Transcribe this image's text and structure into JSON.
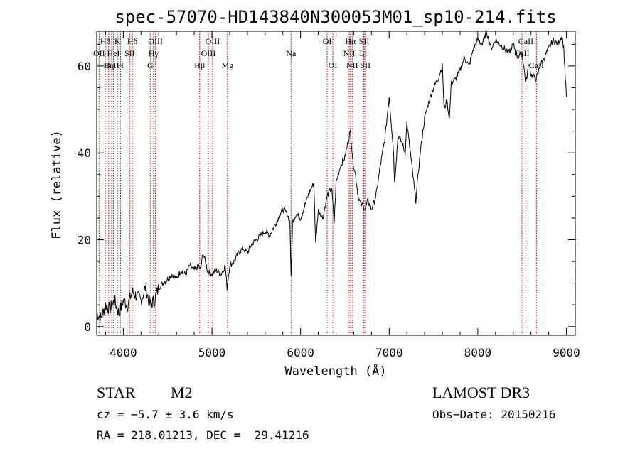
{
  "chart_data": {
    "type": "line",
    "title": "spec-57070-HD143840N300053M01_sp10-214.fits",
    "xlabel": "Wavelength (Å)",
    "ylabel": "Flux (relative)",
    "xlim": [
      3700,
      9100
    ],
    "ylim": [
      -2,
      68
    ],
    "xticks": [
      4000,
      5000,
      6000,
      7000,
      8000,
      9000
    ],
    "yticks": [
      0,
      20,
      40,
      60
    ],
    "grid": false,
    "series": [
      {
        "name": "flux",
        "x": [
          3700,
          3750,
          3800,
          3850,
          3900,
          3950,
          4000,
          4050,
          4100,
          4150,
          4200,
          4250,
          4300,
          4350,
          4400,
          4450,
          4500,
          4550,
          4600,
          4650,
          4700,
          4750,
          4800,
          4850,
          4870,
          4900,
          4950,
          5000,
          5050,
          5100,
          5150,
          5170,
          5200,
          5250,
          5300,
          5350,
          5400,
          5450,
          5500,
          5550,
          5600,
          5650,
          5700,
          5750,
          5800,
          5850,
          5880,
          5893,
          5910,
          5950,
          6000,
          6050,
          6100,
          6150,
          6170,
          6200,
          6250,
          6300,
          6350,
          6380,
          6400,
          6450,
          6500,
          6530,
          6563,
          6590,
          6620,
          6650,
          6680,
          6700,
          6730,
          6760,
          6800,
          6850,
          6900,
          6950,
          7000,
          7050,
          7060,
          7100,
          7150,
          7180,
          7200,
          7250,
          7300,
          7350,
          7400,
          7450,
          7500,
          7550,
          7600,
          7620,
          7650,
          7680,
          7700,
          7750,
          7800,
          7850,
          7900,
          7950,
          8000,
          8050,
          8100,
          8150,
          8200,
          8250,
          8300,
          8350,
          8400,
          8450,
          8500,
          8542,
          8580,
          8600,
          8662,
          8700,
          8750,
          8800,
          8850,
          8900,
          8950,
          8970,
          9000
        ],
        "y": [
          3,
          2,
          5,
          4,
          6,
          3,
          6,
          5,
          8,
          7,
          6,
          9,
          5,
          6,
          9,
          10,
          11,
          12,
          11,
          13,
          12,
          14,
          13,
          14,
          13,
          17,
          13,
          12,
          13,
          12,
          14,
          9,
          14,
          15,
          17,
          18,
          17,
          19,
          20,
          21,
          22,
          21,
          23,
          25,
          27,
          26,
          24,
          11,
          24,
          26,
          25,
          28,
          31,
          33,
          19,
          27,
          25,
          30,
          32,
          24,
          33,
          37,
          39,
          42,
          45,
          38,
          35,
          30,
          28,
          28,
          27,
          29,
          27,
          30,
          37,
          43,
          53,
          40,
          33,
          44,
          42,
          40,
          47,
          38,
          29,
          40,
          48,
          52,
          55,
          57,
          60,
          50,
          52,
          48,
          56,
          57,
          59,
          62,
          60,
          64,
          66,
          65,
          68,
          64,
          66,
          65,
          64,
          63,
          65,
          62,
          63,
          56,
          61,
          58,
          57,
          60,
          62,
          64,
          66,
          65,
          67,
          64,
          53
        ]
      }
    ],
    "line_markers": [
      {
        "label": "Hθ",
        "wavelength": 3797,
        "row": 0
      },
      {
        "label": "OII",
        "wavelength": 3727,
        "row": 1
      },
      {
        "label": "OIII",
        "wavelength": 3869,
        "row": 2
      },
      {
        "label": "K",
        "wavelength": 3934,
        "row": 0
      },
      {
        "label": "HeI",
        "wavelength": 3889,
        "row": 1
      },
      {
        "label": "Hη",
        "wavelength": 3835,
        "row": 2
      },
      {
        "label": "SII",
        "wavelength": 4072,
        "row": 1
      },
      {
        "label": "H",
        "wavelength": 3969,
        "row": 2
      },
      {
        "label": "Hδ",
        "wavelength": 4102,
        "row": 0
      },
      {
        "label": "OIII",
        "wavelength": 4363,
        "row": 0
      },
      {
        "label": "Hγ",
        "wavelength": 4341,
        "row": 1
      },
      {
        "label": "G",
        "wavelength": 4304,
        "row": 2
      },
      {
        "label": "OIII",
        "wavelength": 5007,
        "row": 0
      },
      {
        "label": "OIII",
        "wavelength": 4959,
        "row": 1
      },
      {
        "label": "Hβ",
        "wavelength": 4861,
        "row": 2
      },
      {
        "label": "Mg",
        "wavelength": 5175,
        "row": 2
      },
      {
        "label": "Na",
        "wavelength": 5893,
        "row": 1
      },
      {
        "label": "OI",
        "wavelength": 6300,
        "row": 0
      },
      {
        "label": "OI",
        "wavelength": 6364,
        "row": 2
      },
      {
        "label": "Hα",
        "wavelength": 6563,
        "row": 0
      },
      {
        "label": "SII",
        "wavelength": 6717,
        "row": 0
      },
      {
        "label": "NII",
        "wavelength": 6548,
        "row": 1
      },
      {
        "label": "Li",
        "wavelength": 6708,
        "row": 1
      },
      {
        "label": "NII",
        "wavelength": 6583,
        "row": 2
      },
      {
        "label": "SII",
        "wavelength": 6731,
        "row": 2
      },
      {
        "label": "CaII",
        "wavelength": 8542,
        "row": 0
      },
      {
        "label": "CaII",
        "wavelength": 8498,
        "row": 1
      },
      {
        "label": "CaII",
        "wavelength": 8662,
        "row": 2
      }
    ],
    "marker_color": "#cc0000",
    "line_color": "#000000"
  },
  "info": {
    "object_class": "STAR",
    "subclass": "M2",
    "survey": "LAMOST DR3",
    "cz": "cz = −5.7 ± 3.6 km/s",
    "obs_date": "Obs−Date: 20150216",
    "coords": "RA = 218.01213, DEC =  29.41216"
  }
}
